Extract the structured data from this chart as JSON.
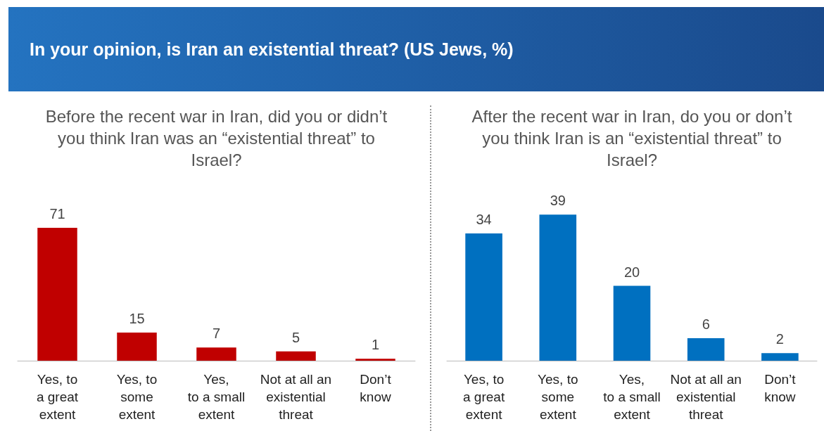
{
  "chart_data": [
    {
      "type": "bar",
      "title": "In your opinion, is Iran an existential threat? (US Jews, %)",
      "subtitle": "Before the recent war in Iran, did you or didn’t you think Iran was an “existential threat” to Israel?",
      "categories": [
        "Yes, to\na great\nextent",
        "Yes, to\nsome\nextent",
        "Yes,\nto a small\nextent",
        "Not at all an\nexistential\nthreat",
        "Don’t\nknow"
      ],
      "values": [
        71,
        15,
        7,
        5,
        1
      ],
      "color": "#c00000",
      "data_labels": true
    },
    {
      "type": "bar",
      "title": "After the recent war in Iran, do you or don’t you think Iran is an “existential threat” to Israel?",
      "categories": [
        "Yes, to\na great\nextent",
        "Yes, to\nsome\nextent",
        "Yes,\nto a small\nextent",
        "Not at all an\nexistential\nthreat",
        "Don’t\nknow"
      ],
      "values": [
        34,
        39,
        20,
        6,
        2
      ],
      "color": "#0070c0",
      "data_labels": true
    }
  ]
}
